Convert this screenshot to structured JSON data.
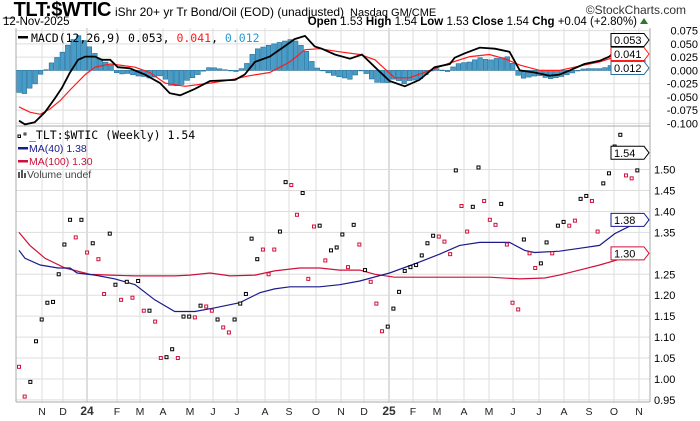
{
  "header": {
    "symbol": "_TLT:$WTIC",
    "description": "iShr 20+ yr Tr Bond/Oil (EOD) (unadjusted)",
    "exchange": "Nasdaq GM/CME",
    "logo": "©StockCharts.com",
    "date": "12-Nov-2025",
    "open_label": "Open",
    "open": "1.53",
    "high_label": "High",
    "high": "1.54",
    "low_label": "Low",
    "low": "1.53",
    "close_label": "Close",
    "close": "1.54",
    "chg_label": "Chg",
    "chg": "+0.04 (+2.80%)"
  },
  "colors": {
    "up": "#000000",
    "down": "#d0103a",
    "ma40": "#1a1a8c",
    "ma100": "#d0103a",
    "macd": "#000000",
    "signal": "#ff1a1a",
    "histogram": "#4a9cc8",
    "grid": "#dddddd"
  },
  "chart_data": [
    {
      "type": "line",
      "title": "MACD(12,26,9)",
      "legend": {
        "label": "MACD(12,26,9)",
        "macd": "0.053",
        "signal": "0.041",
        "histogram": "0.012"
      },
      "ylim": [
        -0.11,
        0.087
      ],
      "y_ticks": [
        "0.075",
        "0.050",
        "0.025",
        "0.000",
        "-0.025",
        "-0.050",
        "-0.075",
        "-0.100"
      ],
      "y_tick_values": [
        0.075,
        0.05,
        0.025,
        0,
        -0.025,
        -0.05,
        -0.075,
        -0.1
      ],
      "last_labels": {
        "macd": "0.053",
        "signal": "0.041",
        "histogram": "0.012"
      },
      "x_domain_weeks": [
        0,
        115
      ],
      "macd": [
        [
          0,
          -0.095
        ],
        [
          1.1,
          -0.102
        ],
        [
          2.9,
          -0.098
        ],
        [
          4.8,
          -0.079
        ],
        [
          6.6,
          -0.053
        ],
        [
          7.9,
          -0.033
        ],
        [
          9.4,
          -0.004
        ],
        [
          10.9,
          0.02
        ],
        [
          12.2,
          0.026
        ],
        [
          14,
          0.026
        ],
        [
          15.3,
          0.02
        ],
        [
          16.8,
          0.02
        ],
        [
          18.2,
          0.006
        ],
        [
          20.4,
          0.004
        ],
        [
          23.2,
          -0.008
        ],
        [
          26,
          -0.024
        ],
        [
          27.8,
          -0.043
        ],
        [
          29.7,
          -0.047
        ],
        [
          32.4,
          -0.035
        ],
        [
          35.2,
          -0.02
        ],
        [
          39.8,
          -0.018
        ],
        [
          41.6,
          -0.008
        ],
        [
          43.5,
          0.016
        ],
        [
          46.2,
          0.026
        ],
        [
          48.9,
          0.045
        ],
        [
          50.8,
          0.059
        ],
        [
          52.7,
          0.065
        ],
        [
          54.5,
          0.045
        ],
        [
          55.8,
          0.041
        ],
        [
          58.2,
          0.03
        ],
        [
          61,
          0.022
        ],
        [
          63.2,
          0.03
        ],
        [
          65.6,
          0.006
        ],
        [
          68.3,
          -0.02
        ],
        [
          71.1,
          -0.03
        ],
        [
          73.8,
          -0.018
        ],
        [
          76.6,
          0.006
        ],
        [
          79.4,
          0.012
        ],
        [
          80.3,
          0.024
        ],
        [
          82.1,
          0.032
        ],
        [
          84.9,
          0.043
        ],
        [
          87.7,
          0.041
        ],
        [
          90.4,
          0.035
        ],
        [
          92.3,
          0
        ],
        [
          95,
          -0.004
        ],
        [
          97.8,
          -0.01
        ],
        [
          99.6,
          -0.008
        ],
        [
          101.5,
          0
        ],
        [
          104.2,
          0.012
        ],
        [
          107,
          0.018
        ],
        [
          108.8,
          0.026
        ],
        [
          110.7,
          0.047
        ],
        [
          112.5,
          0.049
        ],
        [
          114.4,
          0.049
        ],
        [
          115,
          0.053
        ]
      ],
      "signal": [
        [
          0,
          -0.069
        ],
        [
          2,
          -0.079
        ],
        [
          3.9,
          -0.083
        ],
        [
          5.7,
          -0.073
        ],
        [
          7.6,
          -0.057
        ],
        [
          9.4,
          -0.037
        ],
        [
          12.2,
          -0.008
        ],
        [
          14,
          0.006
        ],
        [
          16.8,
          0.012
        ],
        [
          18.6,
          0.01
        ],
        [
          21.4,
          0.006
        ],
        [
          24.1,
          -0.004
        ],
        [
          26.9,
          -0.024
        ],
        [
          30.6,
          -0.03
        ],
        [
          35.2,
          -0.024
        ],
        [
          38.9,
          -0.018
        ],
        [
          42.5,
          -0.01
        ],
        [
          46.2,
          -0.004
        ],
        [
          49.9,
          0.016
        ],
        [
          52.7,
          0.039
        ],
        [
          55.4,
          0.041
        ],
        [
          59.1,
          0.035
        ],
        [
          62.8,
          0.03
        ],
        [
          65.6,
          0.02
        ],
        [
          69.2,
          -0.014
        ],
        [
          72,
          -0.014
        ],
        [
          75.7,
          0
        ],
        [
          79.4,
          0.014
        ],
        [
          83.1,
          0.026
        ],
        [
          86.7,
          0.03
        ],
        [
          89.5,
          0.022
        ],
        [
          92.3,
          0.01
        ],
        [
          96,
          0
        ],
        [
          99.6,
          0
        ],
        [
          103.3,
          0.008
        ],
        [
          107,
          0.016
        ],
        [
          110.7,
          0.028
        ],
        [
          115,
          0.041
        ]
      ]
    },
    {
      "type": "scatter",
      "title": "_TLT:$WTIC (Weekly)",
      "legend": {
        "price": "_TLT:$WTIC (Weekly) 1.54",
        "ma40": "MA(40) 1.38",
        "ma100": "MA(100) 1.30",
        "volume": "Volume undef"
      },
      "ylim": [
        0.945,
        1.604
      ],
      "y_ticks": [
        "1.50",
        "1.45",
        "1.40",
        "1.35",
        "1.25",
        "1.20",
        "1.15",
        "1.10",
        "1.05",
        "1.00",
        "0.95"
      ],
      "y_tick_values": [
        1.5,
        1.45,
        1.4,
        1.35,
        1.25,
        1.2,
        1.15,
        1.1,
        1.05,
        1.0,
        0.95
      ],
      "last_labels": {
        "price": "1.54",
        "ma40": "1.38",
        "ma100": "1.30"
      },
      "x_ticks": [
        "N",
        "D",
        "24",
        "F",
        "M",
        "A",
        "M",
        "J",
        "J",
        "A",
        "S",
        "O",
        "N",
        "D",
        "25",
        "F",
        "M",
        "A",
        "M",
        "J",
        "J",
        "A",
        "S",
        "O",
        "N"
      ],
      "x_domain_weeks": [
        0,
        115
      ],
      "closes": [
        1.029,
        0.958,
        0.993,
        1.09,
        1.142,
        1.182,
        1.184,
        1.25,
        1.321,
        1.38,
        1.338,
        1.38,
        1.302,
        1.324,
        1.286,
        1.203,
        1.347,
        1.225,
        1.189,
        1.232,
        1.194,
        1.234,
        1.163,
        1.163,
        1.137,
        1.05,
        1.052,
        1.071,
        1.05,
        1.149,
        1.149,
        1.147,
        1.175,
        1.173,
        1.163,
        1.142,
        1.123,
        1.111,
        1.142,
        1.18,
        1.203,
        1.335,
        1.286,
        1.309,
        1.25,
        1.309,
        1.352,
        1.47,
        1.463,
        1.392,
        1.444,
        1.239,
        1.364,
        1.366,
        1.283,
        1.307,
        1.314,
        1.345,
        1.267,
        1.368,
        1.321,
        1.26,
        1.232,
        1.18,
        1.114,
        1.125,
        1.168,
        1.208,
        1.258,
        1.267,
        1.272,
        1.295,
        1.324,
        1.342,
        1.34,
        1.328,
        1.298,
        1.498,
        1.413,
        1.352,
        1.411,
        1.505,
        1.425,
        1.38,
        1.368,
        1.418,
        1.321,
        1.182,
        1.166,
        1.333,
        1.3,
        1.265,
        1.276,
        1.326,
        1.3,
        1.366,
        1.375,
        1.366,
        1.378,
        1.43,
        1.437,
        1.425,
        1.352,
        1.467,
        1.491,
        1.555,
        1.583,
        1.486,
        1.479,
        1.498,
        1.54
      ],
      "direction": "rrbbbbbbbbrbrbrrbbrbrbrbrrbbrbbrbrrbrrbbbbbrrrbbrrbrrbrbbbrbrbrrrbbbbbbbbbrrrbrrbbrrrbrrrbrrbbrbbrrbbrrbbbbrrbb",
      "ma40": [
        [
          0,
          1.307
        ],
        [
          1.1,
          1.288
        ],
        [
          3.9,
          1.272
        ],
        [
          7.2,
          1.265
        ],
        [
          9.4,
          1.265
        ],
        [
          10.7,
          1.253
        ],
        [
          14,
          1.248
        ],
        [
          17.7,
          1.239
        ],
        [
          21.4,
          1.225
        ],
        [
          25,
          1.189
        ],
        [
          28.7,
          1.161
        ],
        [
          32.4,
          1.161
        ],
        [
          36.1,
          1.17
        ],
        [
          40.7,
          1.182
        ],
        [
          44.4,
          1.206
        ],
        [
          47.1,
          1.215
        ],
        [
          49.9,
          1.22
        ],
        [
          55.4,
          1.22
        ],
        [
          59.1,
          1.225
        ],
        [
          62.8,
          1.234
        ],
        [
          68.3,
          1.253
        ],
        [
          73.8,
          1.279
        ],
        [
          77.5,
          1.298
        ],
        [
          81.2,
          1.319
        ],
        [
          84.9,
          1.326
        ],
        [
          90.4,
          1.326
        ],
        [
          93.2,
          1.307
        ],
        [
          95,
          1.302
        ],
        [
          99.6,
          1.305
        ],
        [
          103.3,
          1.312
        ],
        [
          107,
          1.319
        ],
        [
          109.8,
          1.347
        ],
        [
          113.5,
          1.371
        ],
        [
          115,
          1.38
        ]
      ],
      "ma100": [
        [
          0,
          1.35
        ],
        [
          2,
          1.319
        ],
        [
          4.8,
          1.288
        ],
        [
          8.5,
          1.265
        ],
        [
          13.1,
          1.25
        ],
        [
          16.8,
          1.248
        ],
        [
          21.4,
          1.246
        ],
        [
          26,
          1.246
        ],
        [
          28.7,
          1.246
        ],
        [
          31.5,
          1.248
        ],
        [
          35.2,
          1.253
        ],
        [
          38.9,
          1.246
        ],
        [
          43.5,
          1.248
        ],
        [
          47.1,
          1.258
        ],
        [
          51.7,
          1.265
        ],
        [
          55.4,
          1.265
        ],
        [
          59.1,
          1.26
        ],
        [
          62.8,
          1.26
        ],
        [
          65.6,
          1.25
        ],
        [
          69.2,
          1.243
        ],
        [
          73.8,
          1.243
        ],
        [
          77.5,
          1.243
        ],
        [
          82.1,
          1.243
        ],
        [
          86.7,
          1.243
        ],
        [
          92.3,
          1.239
        ],
        [
          96.9,
          1.241
        ],
        [
          99.6,
          1.248
        ],
        [
          103.3,
          1.26
        ],
        [
          107,
          1.272
        ],
        [
          110.7,
          1.286
        ],
        [
          114.4,
          1.293
        ],
        [
          115,
          1.296
        ]
      ]
    }
  ]
}
